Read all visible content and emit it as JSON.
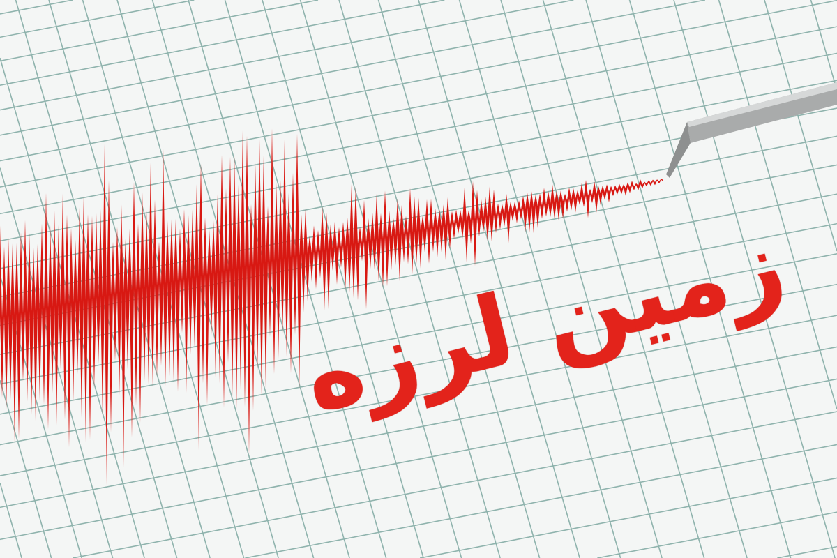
{
  "caption": "زمین لرزه",
  "colors": {
    "background": "#f4f6f5",
    "grid": "#8fb3ad",
    "wave": "#d81812",
    "text": "#e3231b",
    "needle": "#9a9c9c"
  },
  "icons": [
    "seismograph-needle",
    "seismic-wave"
  ]
}
